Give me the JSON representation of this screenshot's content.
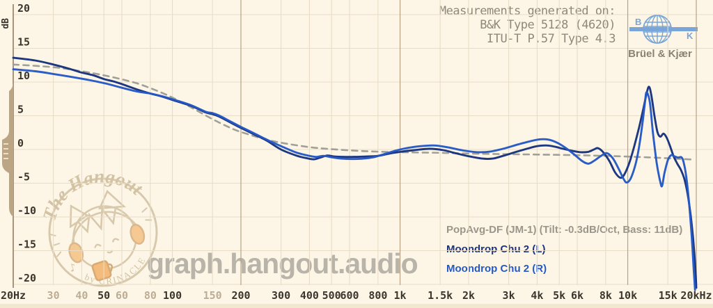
{
  "site": {
    "watermark_title": "graph.hangout.audio",
    "stamp_top": "The Hangout",
    "stamp_bottom": "by CRINACLE"
  },
  "header": {
    "lines": [
      "Measurements generated on:",
      "B&K Type 5128 (4620)",
      "ITU-T P.57 Type 4.3"
    ],
    "bk_logo": {
      "left": "B",
      "right": "K",
      "caption": "Brüel & Kjær",
      "color": "#79a5d8",
      "caption_color": "#8a8173"
    }
  },
  "legend": [
    {
      "label": "PopAvg-DF (JM-1) (Tilt: -0.3dB/Oct, Bass: 11dB)",
      "color": "#9b968a"
    },
    {
      "label": "Moondrop Chu 2 (L)",
      "color": "#1b3381"
    },
    {
      "label": "Moondrop Chu 2 (R)",
      "color": "#2458c5"
    }
  ],
  "colors": {
    "background": "#fdf6e7",
    "grid": "#e8dcc6",
    "grid_major": "#b9a284",
    "axis": "#9a8466",
    "handle": "#bca584",
    "handle_grip": "#ece0c6",
    "tick_major": "#3c372e",
    "tick_minor": "#bcad94",
    "target_curve": "#9d9d95",
    "curve_left": "#16327d",
    "curve_right": "#2458c5",
    "watermark": "#d8c8ac",
    "watermark_peach": "#f6c993"
  },
  "axes": {
    "y_unit": "dB",
    "y_ticks": [
      20,
      15,
      10,
      5,
      0,
      -5,
      -10,
      -15,
      -20
    ],
    "x_ticks": [
      {
        "label": "20Hz",
        "f": 20,
        "major": true
      },
      {
        "label": "30",
        "f": 30,
        "major": false
      },
      {
        "label": "40",
        "f": 40,
        "major": false
      },
      {
        "label": "50",
        "f": 50,
        "major": true
      },
      {
        "label": "60",
        "f": 60,
        "major": false
      },
      {
        "label": "80",
        "f": 80,
        "major": false
      },
      {
        "label": "100",
        "f": 100,
        "major": true
      },
      {
        "label": "150",
        "f": 150,
        "major": false
      },
      {
        "label": "200",
        "f": 200,
        "major": true
      },
      {
        "label": "300",
        "f": 300,
        "major": true
      },
      {
        "label": "400",
        "f": 400,
        "major": true
      },
      {
        "label": "500",
        "f": 500,
        "major": true
      },
      {
        "label": "600",
        "f": 600,
        "major": true
      },
      {
        "label": "800",
        "f": 800,
        "major": true
      },
      {
        "label": "1k",
        "f": 1000,
        "major": true
      },
      {
        "label": "1.5k",
        "f": 1500,
        "major": true
      },
      {
        "label": "2k",
        "f": 2000,
        "major": true
      },
      {
        "label": "3k",
        "f": 3000,
        "major": true
      },
      {
        "label": "4k",
        "f": 4000,
        "major": true
      },
      {
        "label": "5k",
        "f": 5000,
        "major": true
      },
      {
        "label": "6k",
        "f": 6000,
        "major": true
      },
      {
        "label": "8k",
        "f": 8000,
        "major": true
      },
      {
        "label": "10k",
        "f": 10000,
        "major": true
      },
      {
        "label": "15k",
        "f": 15000,
        "major": true
      },
      {
        "label": "20kHz",
        "f": 20000,
        "major": true
      }
    ],
    "emphasized_gridlines": [
      200,
      1000,
      10000,
      20000
    ]
  },
  "chart_data": {
    "type": "line",
    "x_scale": "log",
    "xlim": [
      20,
      20000
    ],
    "ylim": [
      -20,
      20
    ],
    "ylabel": "dB",
    "grid": true,
    "legend_position": "bottom-right",
    "series": [
      {
        "name": "PopAvg-DF (JM-1) (Tilt: -0.3dB/Oct, Bass: 11dB)",
        "style": "dashed",
        "points": [
          [
            20,
            12.6
          ],
          [
            30,
            12.2
          ],
          [
            40,
            11.6
          ],
          [
            50,
            11.0
          ],
          [
            60,
            10.4
          ],
          [
            70,
            9.8
          ],
          [
            80,
            9.1
          ],
          [
            90,
            8.4
          ],
          [
            100,
            7.7
          ],
          [
            120,
            6.3
          ],
          [
            150,
            4.5
          ],
          [
            180,
            3.2
          ],
          [
            200,
            2.6
          ],
          [
            250,
            1.6
          ],
          [
            300,
            1.0
          ],
          [
            400,
            0.35
          ],
          [
            500,
            0.05
          ],
          [
            700,
            -0.25
          ],
          [
            1000,
            -0.4
          ],
          [
            1500,
            -0.5
          ],
          [
            2000,
            -0.6
          ],
          [
            3000,
            -0.7
          ],
          [
            4000,
            -0.75
          ],
          [
            6000,
            -0.85
          ],
          [
            8000,
            -0.95
          ],
          [
            10000,
            -1.05
          ],
          [
            12000,
            -1.15
          ],
          [
            15000,
            -1.3
          ],
          [
            17000,
            -1.4
          ],
          [
            19500,
            -1.5
          ]
        ]
      },
      {
        "name": "Moondrop Chu 2 (L)",
        "style": "solid",
        "points": [
          [
            20,
            13.6
          ],
          [
            25,
            13.2
          ],
          [
            30,
            12.6
          ],
          [
            35,
            12.0
          ],
          [
            40,
            11.4
          ],
          [
            45,
            11.0
          ],
          [
            50,
            10.45
          ],
          [
            55,
            10.1
          ],
          [
            60,
            9.7
          ],
          [
            70,
            8.9
          ],
          [
            80,
            8.3
          ],
          [
            90,
            7.85
          ],
          [
            100,
            7.35
          ],
          [
            120,
            6.5
          ],
          [
            140,
            5.5
          ],
          [
            150,
            5.25
          ],
          [
            160,
            4.9
          ],
          [
            180,
            4.0
          ],
          [
            200,
            3.2
          ],
          [
            230,
            2.2
          ],
          [
            260,
            1.3
          ],
          [
            300,
            0.0
          ],
          [
            350,
            -0.9
          ],
          [
            390,
            -1.3
          ],
          [
            420,
            -1.45
          ],
          [
            450,
            -1.15
          ],
          [
            480,
            -0.9
          ],
          [
            520,
            -1.05
          ],
          [
            600,
            -1.1
          ],
          [
            700,
            -1.05
          ],
          [
            800,
            -0.95
          ],
          [
            900,
            -0.6
          ],
          [
            1000,
            -0.35
          ],
          [
            1150,
            -0.1
          ],
          [
            1350,
            0.1
          ],
          [
            1550,
            -0.1
          ],
          [
            1750,
            -0.55
          ],
          [
            2000,
            -1.0
          ],
          [
            2300,
            -1.35
          ],
          [
            2550,
            -1.35
          ],
          [
            2800,
            -1.0
          ],
          [
            3200,
            -0.4
          ],
          [
            3600,
            0.1
          ],
          [
            4000,
            0.5
          ],
          [
            4400,
            0.6
          ],
          [
            4800,
            0.4
          ],
          [
            5200,
            0.1
          ],
          [
            5700,
            -0.2
          ],
          [
            6200,
            -0.4
          ],
          [
            6700,
            -0.35
          ],
          [
            7100,
            0.0
          ],
          [
            7400,
            0.2
          ],
          [
            7800,
            -0.4
          ],
          [
            8300,
            -1.7
          ],
          [
            8800,
            -3.4
          ],
          [
            9300,
            -4.2
          ],
          [
            9700,
            -3.6
          ],
          [
            10200,
            -1.8
          ],
          [
            10700,
            0.6
          ],
          [
            11200,
            3.2
          ],
          [
            11700,
            6.0
          ],
          [
            12100,
            8.3
          ],
          [
            12400,
            9.3
          ],
          [
            12700,
            8.0
          ],
          [
            13100,
            5.0
          ],
          [
            13500,
            2.6
          ],
          [
            13900,
            1.9
          ],
          [
            14350,
            2.35
          ],
          [
            14800,
            1.8
          ],
          [
            15300,
            0.6
          ],
          [
            15900,
            -1.0
          ],
          [
            16500,
            -2.1
          ],
          [
            17100,
            -3.0
          ],
          [
            17700,
            -4.3
          ],
          [
            18300,
            -6.5
          ],
          [
            18900,
            -9.8
          ],
          [
            19400,
            -13.5
          ],
          [
            19800,
            -17.5
          ],
          [
            20000,
            -20.5
          ]
        ]
      },
      {
        "name": "Moondrop Chu 2 (R)",
        "style": "solid",
        "points": [
          [
            20,
            11.9
          ],
          [
            25,
            11.6
          ],
          [
            30,
            11.2
          ],
          [
            40,
            10.5
          ],
          [
            50,
            9.85
          ],
          [
            60,
            9.15
          ],
          [
            70,
            8.6
          ],
          [
            80,
            8.3
          ],
          [
            90,
            7.9
          ],
          [
            100,
            7.45
          ],
          [
            120,
            6.6
          ],
          [
            140,
            5.6
          ],
          [
            150,
            5.4
          ],
          [
            160,
            5.05
          ],
          [
            180,
            4.15
          ],
          [
            200,
            3.35
          ],
          [
            230,
            2.35
          ],
          [
            260,
            1.45
          ],
          [
            300,
            0.5
          ],
          [
            350,
            -0.45
          ],
          [
            400,
            -0.95
          ],
          [
            430,
            -1.1
          ],
          [
            460,
            -0.95
          ],
          [
            500,
            -1.15
          ],
          [
            550,
            -1.35
          ],
          [
            650,
            -1.4
          ],
          [
            750,
            -1.2
          ],
          [
            850,
            -0.7
          ],
          [
            950,
            -0.2
          ],
          [
            1050,
            0.15
          ],
          [
            1200,
            0.45
          ],
          [
            1400,
            0.6
          ],
          [
            1600,
            0.35
          ],
          [
            1900,
            -0.15
          ],
          [
            2200,
            -0.4
          ],
          [
            2500,
            -0.3
          ],
          [
            2900,
            0.2
          ],
          [
            3300,
            0.75
          ],
          [
            3700,
            1.2
          ],
          [
            4100,
            1.5
          ],
          [
            4500,
            1.45
          ],
          [
            4900,
            1.0
          ],
          [
            5300,
            0.3
          ],
          [
            5800,
            -0.7
          ],
          [
            6300,
            -1.7
          ],
          [
            6700,
            -2.1
          ],
          [
            7100,
            -1.7
          ],
          [
            7600,
            -1.0
          ],
          [
            8100,
            -0.55
          ],
          [
            8600,
            -1.3
          ],
          [
            9100,
            -2.8
          ],
          [
            9600,
            -4.4
          ],
          [
            9900,
            -4.9
          ],
          [
            10300,
            -4.3
          ],
          [
            10800,
            -2.3
          ],
          [
            11200,
            0.3
          ],
          [
            11600,
            3.8
          ],
          [
            11900,
            7.0
          ],
          [
            12100,
            8.5
          ],
          [
            12500,
            7.0
          ],
          [
            12900,
            2.5
          ],
          [
            13400,
            -2.0
          ],
          [
            13900,
            -4.8
          ],
          [
            14150,
            -5.4
          ],
          [
            14500,
            -3.5
          ],
          [
            15000,
            -1.6
          ],
          [
            15500,
            -0.85
          ],
          [
            16000,
            -1.0
          ],
          [
            16600,
            -1.2
          ],
          [
            17200,
            -1.15
          ],
          [
            17600,
            -1.9
          ],
          [
            18100,
            -4.2
          ],
          [
            18600,
            -8.0
          ],
          [
            19100,
            -13.0
          ],
          [
            19500,
            -18.0
          ],
          [
            19750,
            -20.8
          ]
        ]
      }
    ]
  }
}
